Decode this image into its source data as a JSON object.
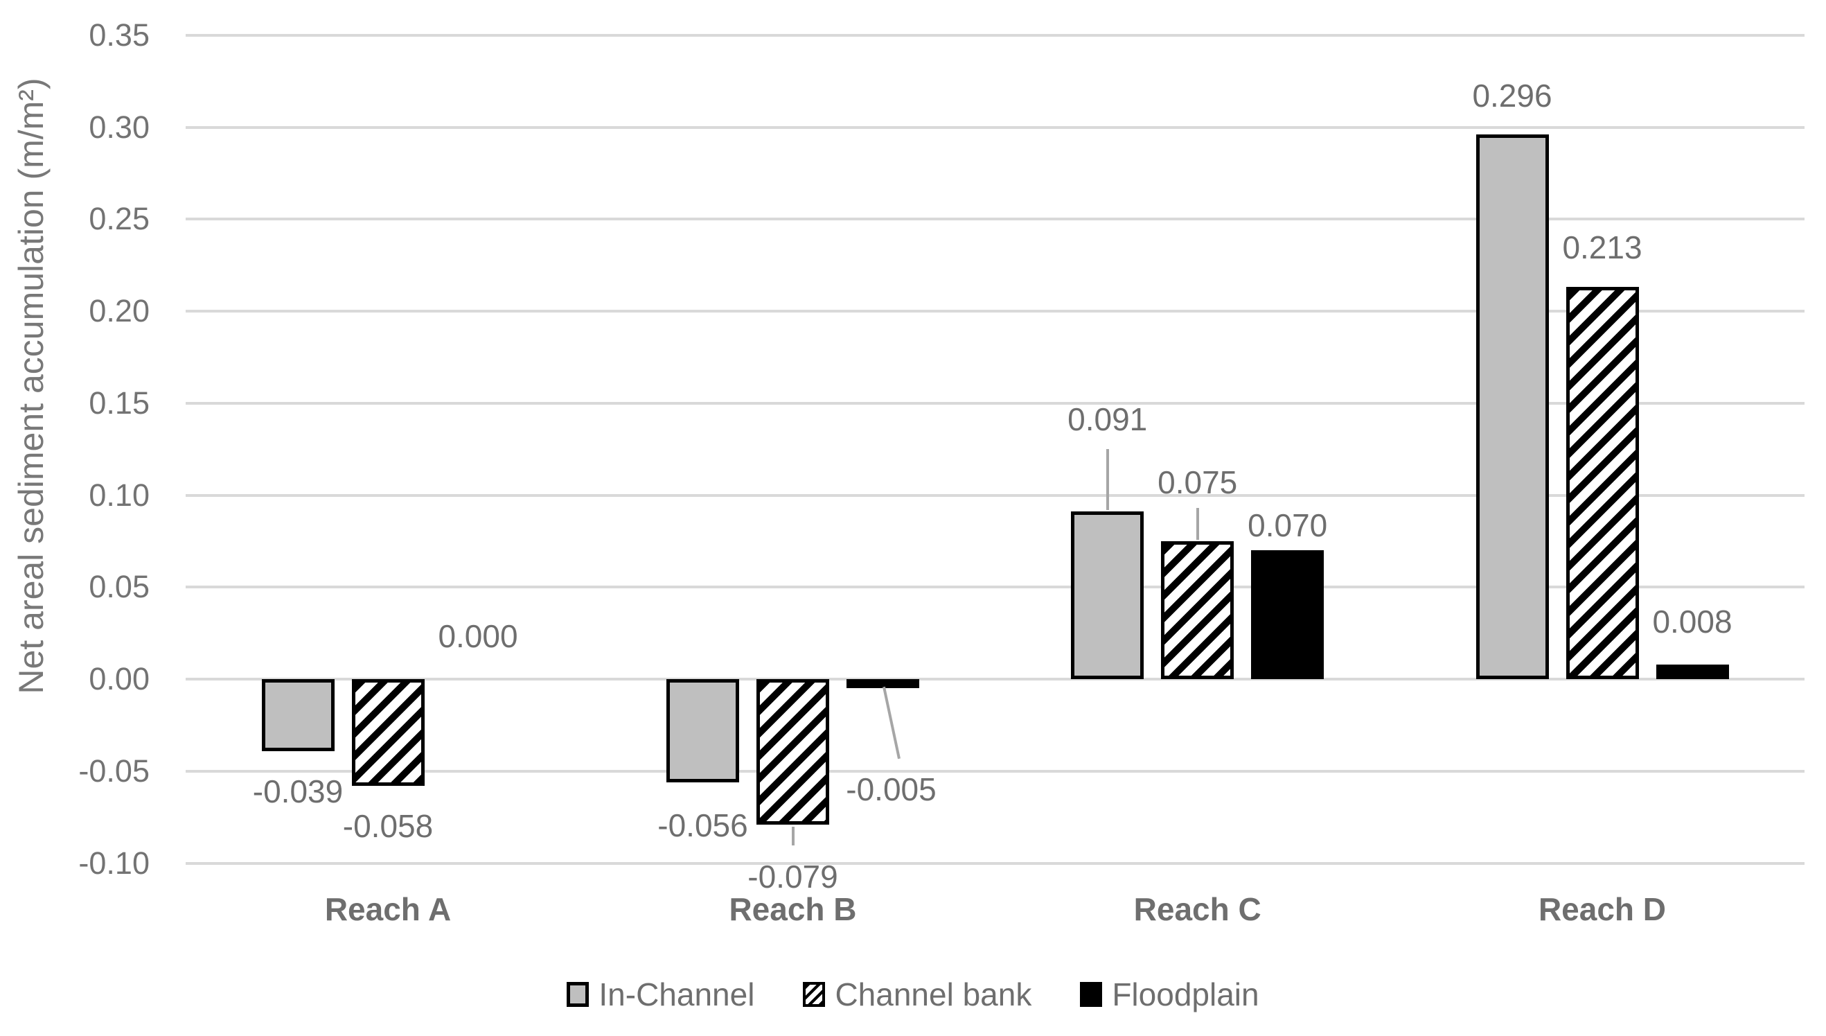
{
  "chart_data": {
    "type": "bar",
    "title": "",
    "xlabel": "",
    "ylabel": "Net areal sediment accumulation (m/m²)",
    "categories": [
      "Reach A",
      "Reach B",
      "Reach C",
      "Reach D"
    ],
    "series": [
      {
        "name": "In-Channel",
        "style": "solid-gray",
        "values": [
          -0.039,
          -0.056,
          0.091,
          0.296
        ],
        "labels": [
          "-0.039",
          "-0.056",
          "0.091",
          "0.296"
        ]
      },
      {
        "name": "Channel bank",
        "style": "diagonal-hatch",
        "values": [
          -0.058,
          -0.079,
          0.075,
          0.213
        ],
        "labels": [
          "-0.058",
          "-0.079",
          "0.075",
          "0.213"
        ]
      },
      {
        "name": "Floodplain",
        "style": "solid-black",
        "values": [
          0.0,
          -0.005,
          0.07,
          0.008
        ],
        "labels": [
          "0.000",
          "-0.005",
          "0.070",
          "0.008"
        ]
      }
    ],
    "y_ticks": [
      "0.35",
      "0.30",
      "0.25",
      "0.20",
      "0.15",
      "0.10",
      "0.05",
      "0.00",
      "-0.05",
      "-0.10"
    ],
    "ylim": [
      -0.1,
      0.35
    ],
    "y_tick_step": 0.05,
    "grid": "horizontal",
    "legend_position": "bottom",
    "colors": {
      "bar_gray": "#bfbfbf",
      "bar_black": "#000000",
      "bar_border": "#000000",
      "gridline": "#d9d9d9",
      "leader_line": "#a6a6a6",
      "text": "#6e6e6e"
    }
  }
}
